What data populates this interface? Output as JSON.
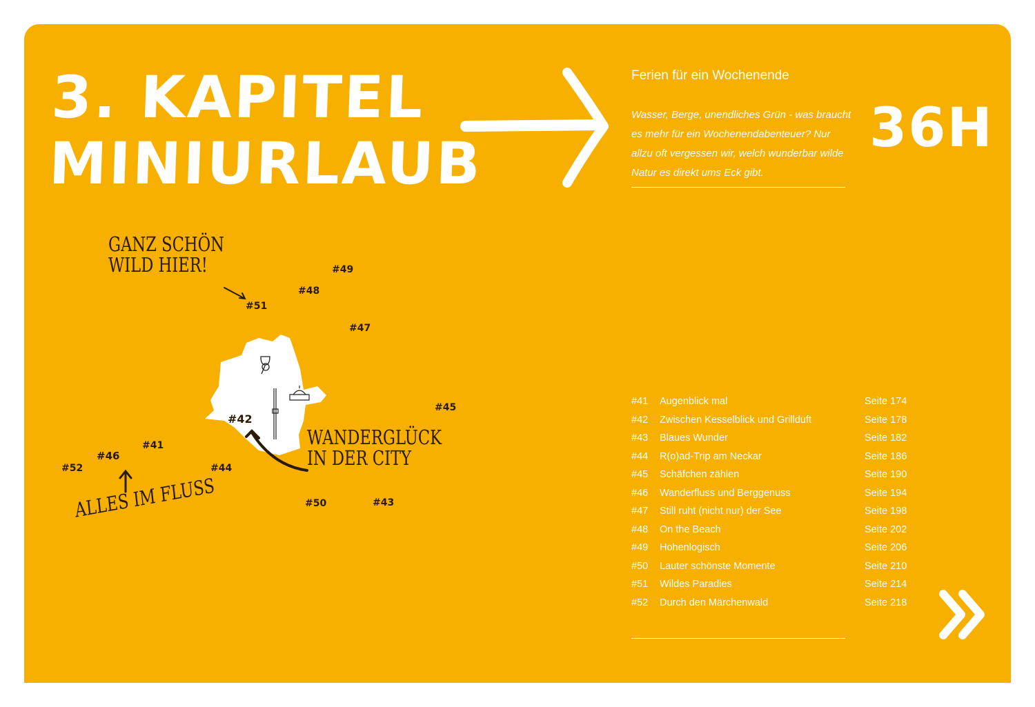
{
  "chapter": {
    "line1": "3. KAPITEL",
    "line2": "MINIURLAUB"
  },
  "subtitle": "Ferien für ein Wochenende",
  "intro": "Wasser, Berge, unendliches Grün - was braucht es mehr für ein Wochenendabenteuer? Nur allzu oft vergessen wir, welch wunderbar wilde Natur es direkt ums Eck gibt.",
  "hours": "36H",
  "map": {
    "markers": [
      "#41",
      "#42",
      "#43",
      "#44",
      "#45",
      "#46",
      "#47",
      "#48",
      "#49",
      "#50",
      "#51",
      "#52"
    ],
    "annotations": {
      "wild": "GANZ SCHÖN WILD HIER!",
      "city": "WANDERGLÜCK IN DER CITY",
      "fluss": "ALLES IM FLUSS"
    }
  },
  "toc": [
    {
      "num": "#41",
      "name": "Augenblick mal",
      "page": "Seite 174"
    },
    {
      "num": "#42",
      "name": "Zwischen Kesselblick und Grillduft",
      "page": "Seite 178"
    },
    {
      "num": "#43",
      "name": "Blaues Wunder",
      "page": "Seite 182"
    },
    {
      "num": "#44",
      "name": "R(o)ad-Trip am Neckar",
      "page": "Seite 186"
    },
    {
      "num": "#45",
      "name": "Schäfchen zählen",
      "page": "Seite 190"
    },
    {
      "num": "#46",
      "name": "Wanderfluss und Berggenuss",
      "page": "Seite 194"
    },
    {
      "num": "#47",
      "name": "Still ruht (nicht nur) der See",
      "page": "Seite 198"
    },
    {
      "num": "#48",
      "name": "On the Beach",
      "page": "Seite 202"
    },
    {
      "num": "#49",
      "name": "Hohenlogisch",
      "page": "Seite 206"
    },
    {
      "num": "#50",
      "name": "Lauter schönste Momente",
      "page": "Seite 210"
    },
    {
      "num": "#51",
      "name": "Wildes Paradies",
      "page": "Seite 214"
    },
    {
      "num": "#52",
      "name": "Durch den Märchenwald",
      "page": "Seite 218"
    }
  ],
  "colors": {
    "background": "#F8B000",
    "text": "#FFFFFF",
    "ink": "#2A1A08"
  },
  "icons": [
    "arrow-right-icon",
    "double-chevron-right-icon",
    "wine-glass-icon",
    "tv-tower-icon",
    "palace-icon"
  ]
}
